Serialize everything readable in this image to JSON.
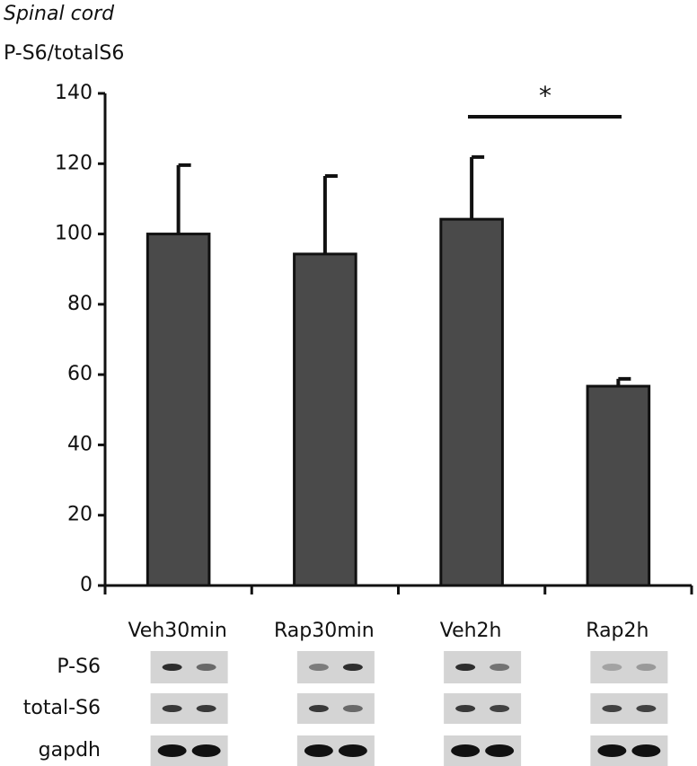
{
  "chart_data": {
    "type": "bar",
    "title": "Spinal cord",
    "y_label": "P-S6/totalS6",
    "categories": [
      "Veh30min",
      "Rap30min",
      "Veh2h",
      "Rap2h"
    ],
    "values": [
      100,
      94.3,
      104.2,
      56.7
    ],
    "errors": [
      19.6,
      22.2,
      17.7,
      2.1
    ],
    "color": "#4a4a4a",
    "ylim": [
      0,
      140
    ],
    "yticks": [
      0,
      20,
      40,
      60,
      80,
      100,
      120,
      140
    ],
    "annotation": "*"
  },
  "blot_rows": [
    "P-S6",
    "total-S6",
    "gapdh"
  ]
}
